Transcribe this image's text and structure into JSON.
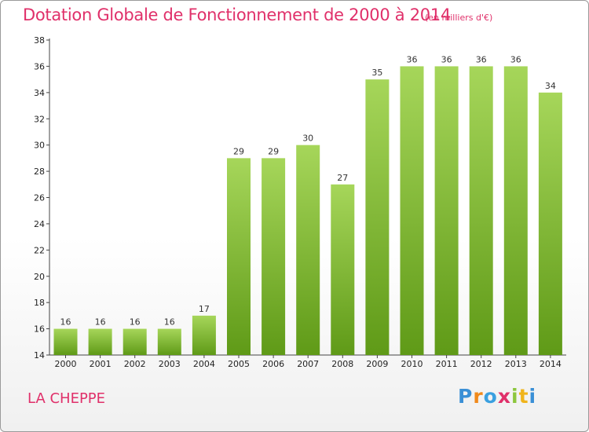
{
  "header": {
    "title": "Dotation Globale de Fonctionnement de 2000 à 2014",
    "subtitle": "(en milliers d'€)"
  },
  "footer": {
    "commune": "LA CHEPPE",
    "logo": "Proxiti"
  },
  "colors": {
    "text_accent": "#e0306a",
    "bar_top": "#a6d65a",
    "bar_bottom": "#5f9a17"
  },
  "chart_data": {
    "type": "bar",
    "title": "Dotation Globale de Fonctionnement de 2000 à 2014",
    "subtitle": "(en milliers d'€)",
    "categories": [
      "2000",
      "2001",
      "2002",
      "2003",
      "2004",
      "2005",
      "2006",
      "2007",
      "2008",
      "2009",
      "2010",
      "2011",
      "2012",
      "2013",
      "2014"
    ],
    "values": [
      16,
      16,
      16,
      16,
      17,
      29,
      29,
      30,
      27,
      35,
      36,
      36,
      36,
      36,
      34
    ],
    "ylim": [
      14,
      38
    ],
    "yticks": [
      14,
      16,
      18,
      20,
      22,
      24,
      26,
      28,
      30,
      32,
      34,
      36,
      38
    ],
    "grid": false,
    "data_labels": true
  }
}
